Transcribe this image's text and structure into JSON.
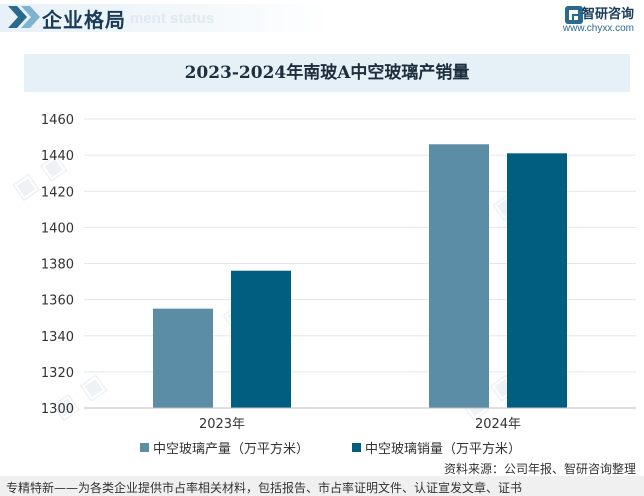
{
  "header": {
    "title": "企业格局",
    "subtitle_ghost": "ment status",
    "brand_name": "智研咨询",
    "brand_url": "www.chyxx.com"
  },
  "colors": {
    "series_production": "#5b8ea6",
    "series_sales": "#005f80",
    "title_bg": "#e6f1f7",
    "header_accent": "#1a3c5a"
  },
  "chart_data": {
    "type": "bar",
    "title": "2023-2024年南玻A中空玻璃产销量",
    "categories": [
      "2023年",
      "2024年"
    ],
    "series": [
      {
        "name": "中空玻璃产量（万平方米）",
        "values": [
          1355,
          1446
        ]
      },
      {
        "name": "中空玻璃销量（万平方米）",
        "values": [
          1376,
          1441
        ]
      }
    ],
    "ylim": [
      1300,
      1460
    ],
    "yticks": [
      1300,
      1320,
      1340,
      1360,
      1380,
      1400,
      1420,
      1440,
      1460
    ],
    "xlabel": "",
    "ylabel": "",
    "grid": true,
    "legend": "bottom-center"
  },
  "footer": {
    "source": "资料来源：公司年报、智研咨询整理",
    "tagline": "专精特新——为各类企业提供市占率相关材料，包括报告、市占率证明文件、认证宣发文章、证书"
  }
}
